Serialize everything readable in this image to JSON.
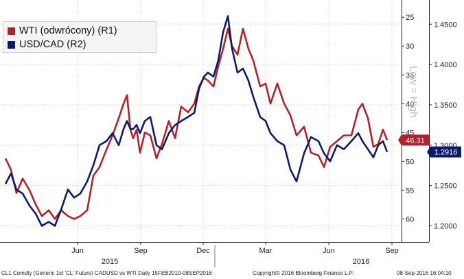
{
  "chart_data": {
    "type": "line",
    "legend_position": "top-left",
    "grid": true,
    "series": [
      {
        "name": "WTI (odwrócony) (R1)",
        "axis": "left-inner",
        "color": "#b0232a",
        "values": [
          [
            "2015-03-02",
            49.5
          ],
          [
            "2015-03-10",
            51.5
          ],
          [
            "2015-03-18",
            55.5
          ],
          [
            "2015-03-27",
            53.0
          ],
          [
            "2015-04-06",
            55.0
          ],
          [
            "2015-04-15",
            57.5
          ],
          [
            "2015-04-24",
            59.5
          ],
          [
            "2015-05-04",
            58.5
          ],
          [
            "2015-05-13",
            60.0
          ],
          [
            "2015-05-22",
            58.5
          ],
          [
            "2015-06-01",
            59.5
          ],
          [
            "2015-06-10",
            60.0
          ],
          [
            "2015-06-19",
            59.5
          ],
          [
            "2015-06-29",
            58.5
          ],
          [
            "2015-07-08",
            52.5
          ],
          [
            "2015-07-17",
            51.0
          ],
          [
            "2015-07-27",
            48.0
          ],
          [
            "2015-08-05",
            45.5
          ],
          [
            "2015-08-14",
            42.5
          ],
          [
            "2015-08-21",
            40.0
          ],
          [
            "2015-08-26",
            38.5
          ],
          [
            "2015-08-31",
            44.5
          ],
          [
            "2015-09-04",
            46.0
          ],
          [
            "2015-09-09",
            44.5
          ],
          [
            "2015-09-14",
            48.5
          ],
          [
            "2015-09-21",
            45.0
          ],
          [
            "2015-09-29",
            45.5
          ],
          [
            "2015-10-08",
            49.5
          ],
          [
            "2015-10-16",
            47.0
          ],
          [
            "2015-10-26",
            43.0
          ],
          [
            "2015-11-04",
            46.0
          ],
          [
            "2015-11-13",
            40.5
          ],
          [
            "2015-11-23",
            41.5
          ],
          [
            "2015-12-02",
            40.0
          ],
          [
            "2015-12-09",
            37.0
          ],
          [
            "2015-12-16",
            35.5
          ],
          [
            "2015-12-22",
            36.0
          ],
          [
            "2015-12-30",
            37.0
          ],
          [
            "2016-01-06",
            33.5
          ],
          [
            "2016-01-13",
            30.5
          ],
          [
            "2016-01-20",
            27.0
          ],
          [
            "2016-01-26",
            30.0
          ],
          [
            "2016-02-03",
            31.5
          ],
          [
            "2016-02-11",
            27.0
          ],
          [
            "2016-02-19",
            30.5
          ],
          [
            "2016-02-26",
            32.5
          ],
          [
            "2016-03-07",
            37.0
          ],
          [
            "2016-03-15",
            36.5
          ],
          [
            "2016-03-22",
            40.0
          ],
          [
            "2016-04-01",
            36.5
          ],
          [
            "2016-04-11",
            40.0
          ],
          [
            "2016-04-20",
            42.0
          ],
          [
            "2016-04-29",
            45.5
          ],
          [
            "2016-05-10",
            44.0
          ],
          [
            "2016-05-20",
            48.5
          ],
          [
            "2016-05-31",
            49.0
          ],
          [
            "2016-06-08",
            51.0
          ],
          [
            "2016-06-17",
            47.5
          ],
          [
            "2016-06-27",
            46.5
          ],
          [
            "2016-07-07",
            45.5
          ],
          [
            "2016-07-18",
            45.5
          ],
          [
            "2016-07-28",
            41.0
          ],
          [
            "2016-08-03",
            40.0
          ],
          [
            "2016-08-11",
            42.5
          ],
          [
            "2016-08-19",
            47.5
          ],
          [
            "2016-08-26",
            47.0
          ],
          [
            "2016-09-02",
            44.5
          ],
          [
            "2016-09-08",
            46.31
          ]
        ]
      },
      {
        "name": "USD/CAD (R2)",
        "axis": "right",
        "color": "#0d1a6b",
        "values": [
          [
            "2015-03-02",
            1.252
          ],
          [
            "2015-03-10",
            1.265
          ],
          [
            "2015-03-18",
            1.245
          ],
          [
            "2015-03-27",
            1.24
          ],
          [
            "2015-04-06",
            1.225
          ],
          [
            "2015-04-15",
            1.215
          ],
          [
            "2015-04-24",
            1.2
          ],
          [
            "2015-05-04",
            1.205
          ],
          [
            "2015-05-13",
            1.2
          ],
          [
            "2015-05-22",
            1.22
          ],
          [
            "2015-06-01",
            1.245
          ],
          [
            "2015-06-10",
            1.235
          ],
          [
            "2015-06-19",
            1.24
          ],
          [
            "2015-06-29",
            1.255
          ],
          [
            "2015-07-08",
            1.275
          ],
          [
            "2015-07-17",
            1.3
          ],
          [
            "2015-07-27",
            1.305
          ],
          [
            "2015-08-05",
            1.315
          ],
          [
            "2015-08-14",
            1.3
          ],
          [
            "2015-08-21",
            1.32
          ],
          [
            "2015-08-26",
            1.33
          ],
          [
            "2015-08-31",
            1.32
          ],
          [
            "2015-09-04",
            1.32
          ],
          [
            "2015-09-09",
            1.325
          ],
          [
            "2015-09-14",
            1.315
          ],
          [
            "2015-09-21",
            1.33
          ],
          [
            "2015-09-29",
            1.335
          ],
          [
            "2015-10-08",
            1.3
          ],
          [
            "2015-10-16",
            1.295
          ],
          [
            "2015-10-26",
            1.315
          ],
          [
            "2015-11-04",
            1.325
          ],
          [
            "2015-11-13",
            1.33
          ],
          [
            "2015-11-23",
            1.335
          ],
          [
            "2015-12-02",
            1.34
          ],
          [
            "2015-12-09",
            1.37
          ],
          [
            "2015-12-16",
            1.385
          ],
          [
            "2015-12-22",
            1.39
          ],
          [
            "2015-12-30",
            1.385
          ],
          [
            "2016-01-06",
            1.405
          ],
          [
            "2016-01-13",
            1.44
          ],
          [
            "2016-01-20",
            1.46
          ],
          [
            "2016-01-26",
            1.42
          ],
          [
            "2016-02-03",
            1.39
          ],
          [
            "2016-02-11",
            1.395
          ],
          [
            "2016-02-19",
            1.38
          ],
          [
            "2016-02-26",
            1.36
          ],
          [
            "2016-03-07",
            1.335
          ],
          [
            "2016-03-15",
            1.33
          ],
          [
            "2016-03-22",
            1.315
          ],
          [
            "2016-04-01",
            1.305
          ],
          [
            "2016-04-11",
            1.3
          ],
          [
            "2016-04-20",
            1.27
          ],
          [
            "2016-04-29",
            1.255
          ],
          [
            "2016-05-10",
            1.29
          ],
          [
            "2016-05-20",
            1.31
          ],
          [
            "2016-05-31",
            1.305
          ],
          [
            "2016-06-08",
            1.29
          ],
          [
            "2016-06-17",
            1.28
          ],
          [
            "2016-06-27",
            1.3
          ],
          [
            "2016-07-07",
            1.295
          ],
          [
            "2016-07-18",
            1.305
          ],
          [
            "2016-07-28",
            1.315
          ],
          [
            "2016-08-03",
            1.305
          ],
          [
            "2016-08-11",
            1.295
          ],
          [
            "2016-08-19",
            1.285
          ],
          [
            "2016-08-26",
            1.3
          ],
          [
            "2016-09-02",
            1.305
          ],
          [
            "2016-09-08",
            1.2916
          ]
        ]
      }
    ],
    "x_range": [
      "2015-02-22",
      "2016-09-29"
    ],
    "x_ticks": [
      {
        "date": "2015-06-15",
        "label": "Jun"
      },
      {
        "date": "2015-09-15",
        "label": "Sep"
      },
      {
        "date": "2015-12-15",
        "label": "Dec"
      },
      {
        "date": "2016-03-15",
        "label": "Mar"
      },
      {
        "date": "2016-06-15",
        "label": "Jun"
      },
      {
        "date": "2016-09-15",
        "label": "Sep"
      }
    ],
    "x_year_labels": [
      {
        "date": "2015-08-01",
        "label": "2015"
      },
      {
        "date": "2016-08-01",
        "label": "2016"
      }
    ],
    "year_divider": "2016-01-01",
    "left_axis": {
      "inverted": true,
      "range": [
        22,
        64
      ],
      "ticks": [
        25,
        30,
        35,
        40,
        45,
        50,
        55,
        60
      ]
    },
    "right_axis": {
      "range": [
        1.18,
        1.48
      ],
      "ticks": [
        "1.2000",
        "1.2500",
        "1.3000",
        "1.3500",
        "1.4000",
        "1.4500"
      ],
      "ylabel": "Low = High"
    },
    "last_value_labels": [
      {
        "series": 0,
        "text": "46.31",
        "color": "#b0232a"
      },
      {
        "series": 1,
        "text": "1.2916",
        "color": "#0d1a6b"
      }
    ]
  },
  "footer": {
    "source": "CL1 Comdty (Generic 1st 'CL' Future) CADUSD vs WTI  Daily 15FEB2010-08SEP2016",
    "copyright": "Copyright© 2016 Bloomberg Finance L.P.",
    "timestamp": "08-Sep-2016 16:04:10"
  }
}
